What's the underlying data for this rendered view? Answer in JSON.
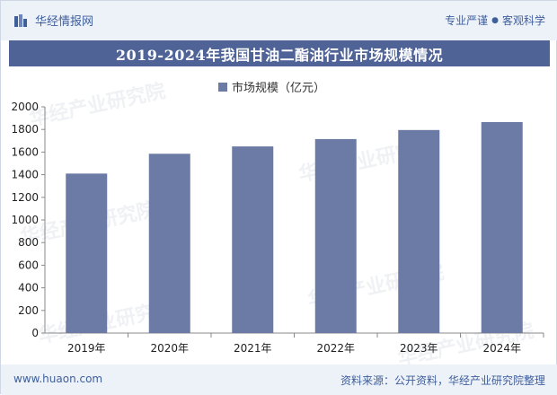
{
  "header": {
    "brand_name": "华经情报网",
    "slogan_left": "专业严谨",
    "slogan_right": "客观科学",
    "brand_icon": "chart-bars-logo",
    "colors": {
      "header_bg": "#edf1f8",
      "accent": "#3f5f9b",
      "title_bg": "#4f6397",
      "bar": "#6b7ba6"
    }
  },
  "title": "2019-2024年我国甘油二酯油行业市场规模情况",
  "watermark": {
    "cn": "华经产业研究院",
    "url": "www.huaon.com"
  },
  "chart_data": {
    "type": "bar",
    "categories": [
      "2019年",
      "2020年",
      "2021年",
      "2022年",
      "2023年",
      "2024年"
    ],
    "series": [
      {
        "name": "市场规模（亿元）",
        "values": [
          1410,
          1585,
          1650,
          1715,
          1795,
          1865
        ]
      }
    ],
    "ylim": [
      0,
      2000
    ],
    "yticks": [
      "0",
      "200",
      "400",
      "600",
      "800",
      "1000",
      "1200",
      "1400",
      "1600",
      "1800",
      "2000"
    ],
    "xlabel": "",
    "ylabel": "",
    "legend_position": "top-center",
    "grid": false
  },
  "footer": {
    "url": "www.huaon.com",
    "source": "资料来源：公开资料，华经产业研究院整理"
  }
}
